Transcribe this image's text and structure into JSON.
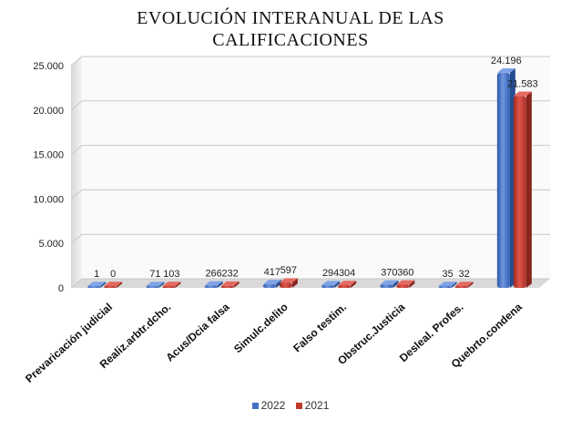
{
  "chart_data": {
    "type": "bar",
    "title_lines": [
      "EVOLUCIÓN INTERANUAL DE LAS",
      "CALIFICACIONES"
    ],
    "categories": [
      "Prevaricación judicial",
      "Realiz.arbtr.dcho.",
      "Acus/Dcia falsa",
      "Simulc.delito",
      "Falso testim.",
      "Obstruc.Justicia",
      "Desleal. Profes.",
      "Quebrto.condena"
    ],
    "series": [
      {
        "name": "2022",
        "values": [
          1,
          71,
          266,
          417,
          294,
          370,
          35,
          24196
        ],
        "labels": [
          "1",
          "71",
          "266",
          "417",
          "294",
          "370",
          "35",
          "24.196"
        ]
      },
      {
        "name": "2021",
        "values": [
          0,
          103,
          232,
          597,
          304,
          360,
          32,
          21583
        ],
        "labels": [
          "0",
          "103",
          "232",
          "597",
          "304",
          "360",
          "32",
          "21.583"
        ]
      }
    ],
    "yticks": [
      "0",
      "5.000",
      "10.000",
      "15.000",
      "20.000",
      "25.000"
    ],
    "ylim": [
      0,
      25000
    ],
    "grid": true,
    "legend_position": "bottom",
    "colors": {
      "2022": "#4472c4",
      "2021": "#c0392b"
    }
  }
}
